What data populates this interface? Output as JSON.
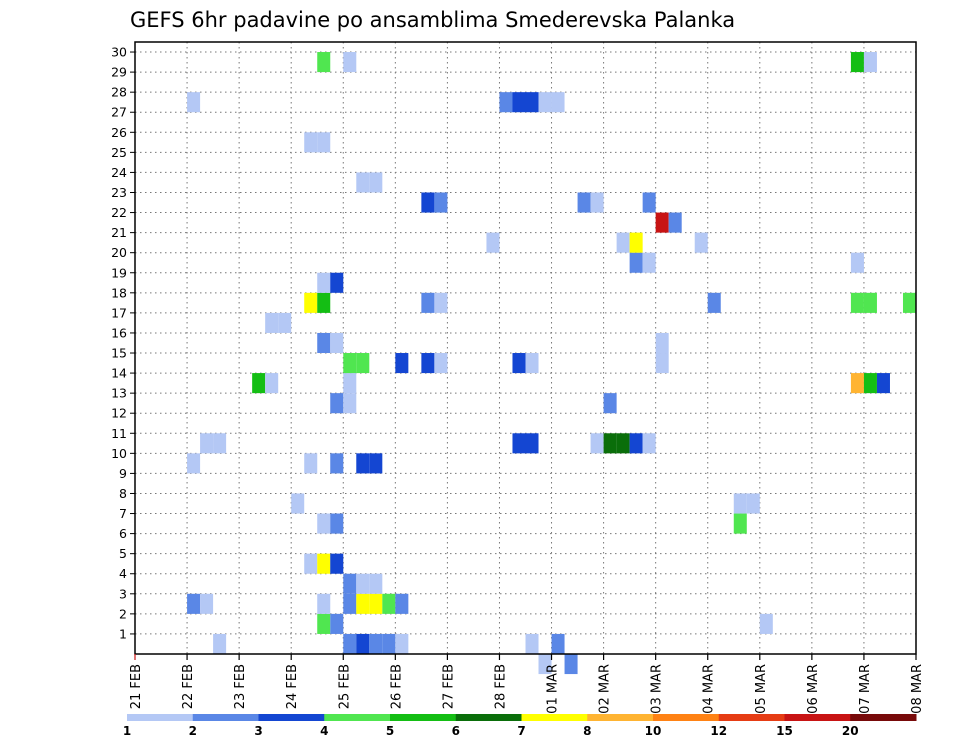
{
  "chart_data": {
    "type": "heatmap",
    "title": "GEFS 6hr padavine po ansamblima Smederevska Palanka",
    "xlabel": "",
    "ylabel": "",
    "x_ticks": [
      "21 FEB",
      "22 FEB",
      "23 FEB",
      "24 FEB",
      "25 FEB",
      "26 FEB",
      "27 FEB",
      "28 FEB",
      "01 MAR",
      "02 MAR",
      "03 MAR",
      "04 MAR",
      "05 MAR",
      "06 MAR",
      "07 MAR",
      "08 MAR"
    ],
    "y_ticks": [
      "1",
      "2",
      "3",
      "4",
      "5",
      "6",
      "7",
      "8",
      "9",
      "10",
      "11",
      "12",
      "13",
      "14",
      "15",
      "16",
      "17",
      "18",
      "19",
      "20",
      "21",
      "22",
      "23",
      "24",
      "25",
      "26",
      "27",
      "28",
      "29",
      "30"
    ],
    "x_range_days": [
      0,
      15
    ],
    "y_range_members": [
      1,
      30
    ],
    "grid": true,
    "legend": {
      "position": "bottom",
      "labels": [
        "1",
        "2",
        "3",
        "4",
        "5",
        "6",
        "7",
        "8",
        "10",
        "12",
        "15",
        "20"
      ],
      "colors": [
        "#b4c8f5",
        "#5a87e6",
        "#1446d2",
        "#50e650",
        "#14be14",
        "#0a6e0a",
        "#ffff00",
        "#ffb432",
        "#ff8214",
        "#e63c14",
        "#c81414",
        "#780a0a"
      ]
    },
    "cells": [
      {
        "t": 6,
        "m": 1,
        "v": 1
      },
      {
        "t": 16,
        "m": 1,
        "v": 2
      },
      {
        "t": 17,
        "m": 1,
        "v": 3
      },
      {
        "t": 18,
        "m": 1,
        "v": 2
      },
      {
        "t": 19,
        "m": 1,
        "v": 2
      },
      {
        "t": 20,
        "m": 1,
        "v": 1
      },
      {
        "t": 30,
        "m": 1,
        "v": 1
      },
      {
        "t": 32,
        "m": 1,
        "v": 2
      },
      {
        "t": 14,
        "m": 2,
        "v": 4
      },
      {
        "t": 15,
        "m": 2,
        "v": 2
      },
      {
        "t": 48,
        "m": 2,
        "v": 1
      },
      {
        "t": 4,
        "m": 3,
        "v": 2
      },
      {
        "t": 5,
        "m": 3,
        "v": 1
      },
      {
        "t": 14,
        "m": 3,
        "v": 1
      },
      {
        "t": 16,
        "m": 3,
        "v": 2
      },
      {
        "t": 17,
        "m": 3,
        "v": 7
      },
      {
        "t": 18,
        "m": 3,
        "v": 7
      },
      {
        "t": 19,
        "m": 3,
        "v": 4
      },
      {
        "t": 20,
        "m": 3,
        "v": 2
      },
      {
        "t": 16,
        "m": 4,
        "v": 2
      },
      {
        "t": 17,
        "m": 4,
        "v": 1
      },
      {
        "t": 18,
        "m": 4,
        "v": 1
      },
      {
        "t": 13,
        "m": 5,
        "v": 1
      },
      {
        "t": 14,
        "m": 5,
        "v": 7
      },
      {
        "t": 15,
        "m": 5,
        "v": 3
      },
      {
        "t": 14,
        "m": 7,
        "v": 1
      },
      {
        "t": 15,
        "m": 7,
        "v": 2
      },
      {
        "t": 46,
        "m": 7,
        "v": 4
      },
      {
        "t": 12,
        "m": 8,
        "v": 1
      },
      {
        "t": 46,
        "m": 8,
        "v": 1
      },
      {
        "t": 47,
        "m": 8,
        "v": 1
      },
      {
        "t": 4,
        "m": 10,
        "v": 1
      },
      {
        "t": 13,
        "m": 10,
        "v": 1
      },
      {
        "t": 15,
        "m": 10,
        "v": 2
      },
      {
        "t": 17,
        "m": 10,
        "v": 3
      },
      {
        "t": 18,
        "m": 10,
        "v": 3
      },
      {
        "t": 5,
        "m": 11,
        "v": 1
      },
      {
        "t": 6,
        "m": 11,
        "v": 1
      },
      {
        "t": 29,
        "m": 11,
        "v": 3
      },
      {
        "t": 30,
        "m": 11,
        "v": 3
      },
      {
        "t": 35,
        "m": 11,
        "v": 1
      },
      {
        "t": 36,
        "m": 11,
        "v": 6
      },
      {
        "t": 37,
        "m": 11,
        "v": 6
      },
      {
        "t": 38,
        "m": 11,
        "v": 3
      },
      {
        "t": 39,
        "m": 11,
        "v": 1
      },
      {
        "t": 15,
        "m": 13,
        "v": 2
      },
      {
        "t": 16,
        "m": 13,
        "v": 1
      },
      {
        "t": 36,
        "m": 13,
        "v": 2
      },
      {
        "t": 9,
        "m": 14,
        "v": 5
      },
      {
        "t": 10,
        "m": 14,
        "v": 1
      },
      {
        "t": 16,
        "m": 14,
        "v": 1
      },
      {
        "t": 55,
        "m": 14,
        "v": 8
      },
      {
        "t": 56,
        "m": 14,
        "v": 5
      },
      {
        "t": 57,
        "m": 14,
        "v": 3
      },
      {
        "t": 16,
        "m": 15,
        "v": 4
      },
      {
        "t": 17,
        "m": 15,
        "v": 4
      },
      {
        "t": 20,
        "m": 15,
        "v": 3
      },
      {
        "t": 22,
        "m": 15,
        "v": 3
      },
      {
        "t": 23,
        "m": 15,
        "v": 1
      },
      {
        "t": 29,
        "m": 15,
        "v": 3
      },
      {
        "t": 30,
        "m": 15,
        "v": 1
      },
      {
        "t": 40,
        "m": 15,
        "v": 1
      },
      {
        "t": 14,
        "m": 16,
        "v": 2
      },
      {
        "t": 15,
        "m": 16,
        "v": 1
      },
      {
        "t": 40,
        "m": 16,
        "v": 1
      },
      {
        "t": 10,
        "m": 17,
        "v": 1
      },
      {
        "t": 11,
        "m": 17,
        "v": 1
      },
      {
        "t": 13,
        "m": 18,
        "v": 7
      },
      {
        "t": 14,
        "m": 18,
        "v": 5
      },
      {
        "t": 22,
        "m": 18,
        "v": 2
      },
      {
        "t": 23,
        "m": 18,
        "v": 1
      },
      {
        "t": 44,
        "m": 18,
        "v": 2
      },
      {
        "t": 55,
        "m": 18,
        "v": 4
      },
      {
        "t": 56,
        "m": 18,
        "v": 4
      },
      {
        "t": 59,
        "m": 18,
        "v": 4
      },
      {
        "t": 14,
        "m": 19,
        "v": 1
      },
      {
        "t": 15,
        "m": 19,
        "v": 3
      },
      {
        "t": 38,
        "m": 20,
        "v": 2
      },
      {
        "t": 39,
        "m": 20,
        "v": 1
      },
      {
        "t": 55,
        "m": 20,
        "v": 1
      },
      {
        "t": 27,
        "m": 21,
        "v": 1
      },
      {
        "t": 37,
        "m": 21,
        "v": 1
      },
      {
        "t": 38,
        "m": 21,
        "v": 7
      },
      {
        "t": 43,
        "m": 21,
        "v": 1
      },
      {
        "t": 40,
        "m": 22,
        "v": 11
      },
      {
        "t": 41,
        "m": 22,
        "v": 2
      },
      {
        "t": 22,
        "m": 23,
        "v": 3
      },
      {
        "t": 23,
        "m": 23,
        "v": 2
      },
      {
        "t": 34,
        "m": 23,
        "v": 2
      },
      {
        "t": 35,
        "m": 23,
        "v": 1
      },
      {
        "t": 39,
        "m": 23,
        "v": 2
      },
      {
        "t": 17,
        "m": 24,
        "v": 1
      },
      {
        "t": 18,
        "m": 24,
        "v": 1
      },
      {
        "t": 13,
        "m": 26,
        "v": 1
      },
      {
        "t": 14,
        "m": 26,
        "v": 1
      },
      {
        "t": 4,
        "m": 28,
        "v": 1
      },
      {
        "t": 28,
        "m": 28,
        "v": 2
      },
      {
        "t": 29,
        "m": 28,
        "v": 3
      },
      {
        "t": 30,
        "m": 28,
        "v": 3
      },
      {
        "t": 31,
        "m": 28,
        "v": 1
      },
      {
        "t": 32,
        "m": 28,
        "v": 1
      },
      {
        "t": 14,
        "m": 30,
        "v": 4
      },
      {
        "t": 16,
        "m": 30,
        "v": 1
      },
      {
        "t": 55,
        "m": 30,
        "v": 5
      },
      {
        "t": 56,
        "m": 30,
        "v": 1
      },
      {
        "t": 31,
        "m": 0,
        "v": 1
      },
      {
        "t": 33,
        "m": 0,
        "v": 2
      }
    ]
  }
}
